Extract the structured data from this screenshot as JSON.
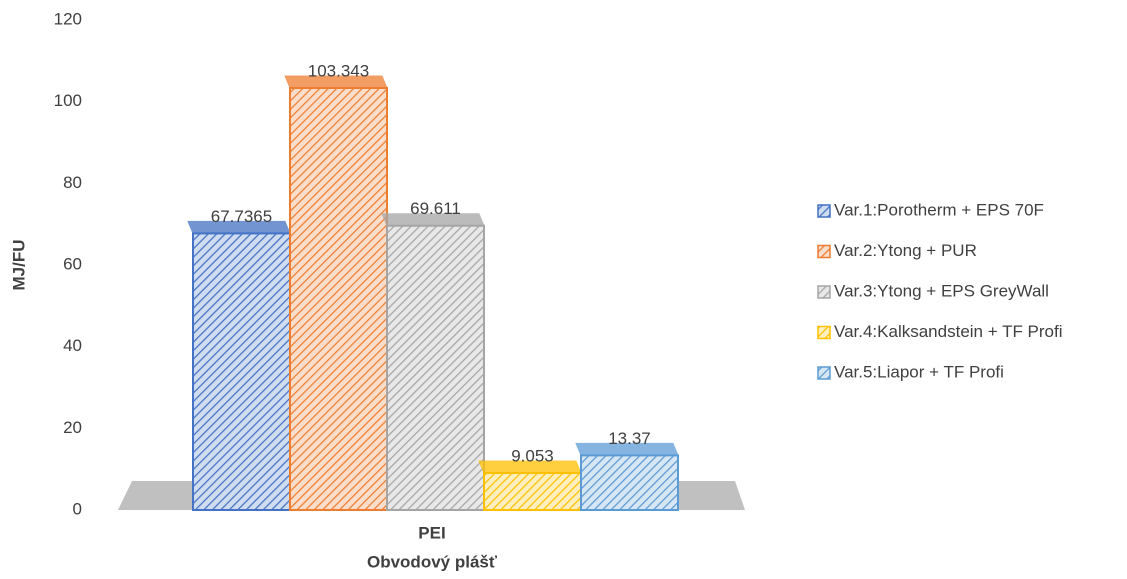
{
  "chart_data": {
    "type": "bar3d",
    "categories": [
      "PEI"
    ],
    "x_label": "Obvodový plášť",
    "y_label": "MJ/FU",
    "series": [
      {
        "name": "Var.1:Porotherm + EPS 70F",
        "color": "#4472c4",
        "values": [
          67.7365
        ]
      },
      {
        "name": "Var.2:Ytong + PUR",
        "color": "#ed7d31",
        "values": [
          103.343
        ]
      },
      {
        "name": "Var.3:Ytong + EPS GreyWall",
        "color": "#a5a5a5",
        "values": [
          69.611
        ]
      },
      {
        "name": "Var.4:Kalksandstein + TF Profi",
        "color": "#ffc000",
        "values": [
          9.053
        ]
      },
      {
        "name": "Var.5:Liapor + TF Profi",
        "color": "#5b9bd5",
        "values": [
          13.37
        ]
      }
    ],
    "ylim": [
      0,
      120
    ],
    "yticks": [
      0,
      20,
      40,
      60,
      80,
      100,
      120
    ],
    "legend": "right"
  }
}
